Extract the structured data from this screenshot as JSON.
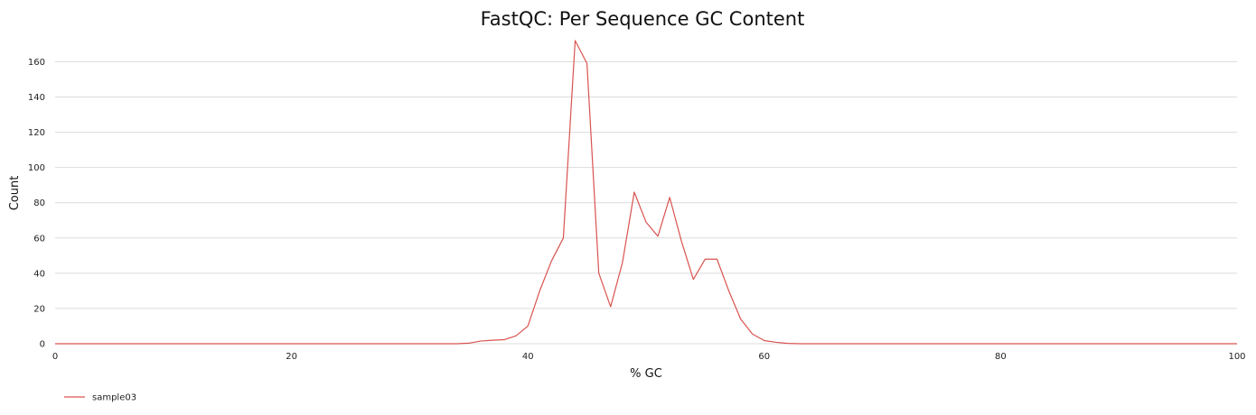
{
  "chart_data": {
    "type": "line",
    "title": "FastQC: Per Sequence GC Content",
    "xlabel": "% GC",
    "ylabel": "Count",
    "xlim": [
      0,
      100
    ],
    "ylim": [
      0,
      172
    ],
    "xticks": [
      0,
      20,
      40,
      60,
      80,
      100
    ],
    "yticks": [
      0,
      20,
      40,
      60,
      80,
      100,
      120,
      140,
      160
    ],
    "grid": "horizontal",
    "legend": "bottom-left",
    "series": [
      {
        "name": "sample03",
        "color": "#d9534f",
        "x": [
          0,
          10,
          20,
          30,
          33,
          34,
          35,
          36,
          37,
          38,
          39,
          40,
          41,
          42,
          43,
          44,
          45,
          46,
          47,
          48,
          49,
          50,
          51,
          52,
          53,
          54,
          55,
          56,
          57,
          58,
          59,
          60,
          61,
          62,
          63,
          64,
          70,
          80,
          90,
          100
        ],
        "y": [
          0,
          0,
          0,
          0,
          0,
          0,
          0.3,
          1.5,
          2,
          2.3,
          4.5,
          10,
          30,
          47,
          60,
          172,
          159,
          40,
          21,
          46,
          86,
          69,
          61,
          83,
          58,
          36.5,
          48,
          48,
          30,
          14,
          5.5,
          1.8,
          0.8,
          0.2,
          0,
          0,
          0,
          0,
          0,
          0
        ]
      }
    ]
  }
}
